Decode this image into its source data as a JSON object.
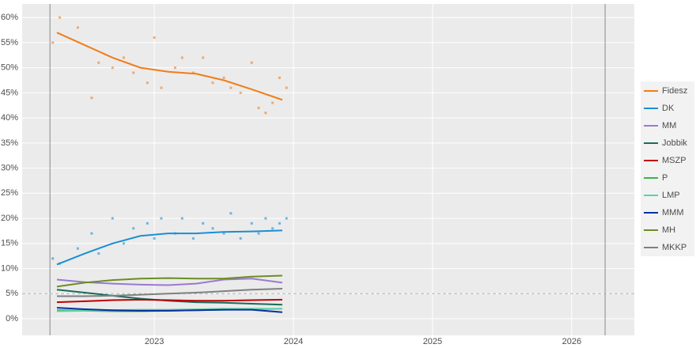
{
  "chart_data": {
    "type": "line",
    "xlim": [
      2022.05,
      2026.45
    ],
    "ylim": [
      -3.3,
      62.7
    ],
    "xticks": [
      2023,
      2024,
      2025,
      2026
    ],
    "yticks": [
      {
        "value": 0,
        "label": "0%"
      },
      {
        "value": 5,
        "label": "5%"
      },
      {
        "value": 10,
        "label": "10%"
      },
      {
        "value": 15,
        "label": "15%"
      },
      {
        "value": 20,
        "label": "20%"
      },
      {
        "value": 25,
        "label": "25%"
      },
      {
        "value": 30,
        "label": "30%"
      },
      {
        "value": 35,
        "label": "35%"
      },
      {
        "value": 40,
        "label": "40%"
      },
      {
        "value": 45,
        "label": "45%"
      },
      {
        "value": 50,
        "label": "50%"
      },
      {
        "value": 55,
        "label": "55%"
      },
      {
        "value": 60,
        "label": "60%"
      }
    ],
    "grid": true,
    "legend": "right",
    "threshold": 5,
    "election_lines": [
      2022.25,
      2026.24
    ],
    "series": [
      {
        "name": "Fidesz",
        "color": "#f07d1a",
        "x": [
          2022.3,
          2022.5,
          2022.7,
          2022.9,
          2023.1,
          2023.3,
          2023.5,
          2023.7,
          2023.92
        ],
        "values": [
          57,
          54.5,
          52,
          50,
          49.2,
          48.8,
          47.5,
          45.7,
          43.6
        ],
        "poll_x": [
          2022.27,
          2022.32,
          2022.45,
          2022.55,
          2022.6,
          2022.7,
          2022.78,
          2022.85,
          2022.95,
          2023.0,
          2023.05,
          2023.15,
          2023.2,
          2023.28,
          2023.35,
          2023.42,
          2023.5,
          2023.55,
          2023.62,
          2023.7,
          2023.75,
          2023.8,
          2023.85,
          2023.9,
          2023.95
        ],
        "poll_values": [
          55,
          60,
          58,
          44,
          51,
          50,
          52,
          49,
          47,
          56,
          46,
          50,
          52,
          49,
          52,
          47,
          48,
          46,
          45,
          51,
          42,
          41,
          43,
          48,
          46
        ]
      },
      {
        "name": "DK",
        "color": "#1a8fd4",
        "x": [
          2022.3,
          2022.5,
          2022.7,
          2022.9,
          2023.1,
          2023.3,
          2023.5,
          2023.7,
          2023.92
        ],
        "values": [
          10.8,
          13,
          15,
          16.5,
          17,
          17,
          17.3,
          17.4,
          17.6
        ],
        "poll_x": [
          2022.27,
          2022.32,
          2022.45,
          2022.55,
          2022.6,
          2022.7,
          2022.78,
          2022.85,
          2022.95,
          2023.0,
          2023.05,
          2023.15,
          2023.2,
          2023.28,
          2023.35,
          2023.42,
          2023.5,
          2023.55,
          2023.62,
          2023.7,
          2023.75,
          2023.8,
          2023.85,
          2023.9,
          2023.95
        ],
        "poll_values": [
          12,
          11,
          14,
          17,
          13,
          20,
          15,
          18,
          19,
          16,
          20,
          17,
          20,
          16,
          19,
          18,
          17,
          21,
          16,
          19,
          17,
          20,
          18,
          19,
          20
        ]
      },
      {
        "name": "MM",
        "color": "#9a7ad0",
        "x": [
          2022.3,
          2022.5,
          2022.7,
          2022.9,
          2023.1,
          2023.3,
          2023.5,
          2023.7,
          2023.92
        ],
        "values": [
          7.8,
          7.3,
          7,
          6.8,
          6.7,
          7,
          7.8,
          8,
          7.2
        ]
      },
      {
        "name": "Jobbik",
        "color": "#1a6b5a",
        "x": [
          2022.3,
          2022.5,
          2022.7,
          2022.9,
          2023.1,
          2023.3,
          2023.5,
          2023.7,
          2023.92
        ],
        "values": [
          5.8,
          5.2,
          4.6,
          4,
          3.6,
          3.3,
          3.2,
          3,
          2.8
        ]
      },
      {
        "name": "MSZP",
        "color": "#c00000",
        "x": [
          2022.3,
          2022.5,
          2022.7,
          2022.9,
          2023.1,
          2023.3,
          2023.5,
          2023.7,
          2023.92
        ],
        "values": [
          3.3,
          3.5,
          3.7,
          3.8,
          3.7,
          3.6,
          3.6,
          3.7,
          3.8
        ]
      },
      {
        "name": "P",
        "color": "#3cb34a",
        "x": [
          2022.3,
          2022.5,
          2022.7,
          2022.9,
          2023.1,
          2023.3,
          2023.5,
          2023.7,
          2023.92
        ],
        "values": [
          1.7,
          1.6,
          1.5,
          1.5,
          1.6,
          1.7,
          1.8,
          1.9,
          2
        ]
      },
      {
        "name": "LMP",
        "color": "#5fd0a8",
        "x": [
          2022.3,
          2022.5,
          2022.7,
          2022.9,
          2023.1,
          2023.3,
          2023.5,
          2023.7,
          2023.92
        ],
        "values": [
          1.5,
          1.6,
          1.7,
          1.8,
          1.8,
          1.9,
          2,
          2,
          2
        ]
      },
      {
        "name": "MMM",
        "color": "#0a2fa0",
        "x": [
          2022.3,
          2022.5,
          2022.7,
          2022.9,
          2023.1,
          2023.3,
          2023.5,
          2023.7,
          2023.92
        ],
        "values": [
          2.2,
          1.9,
          1.7,
          1.6,
          1.6,
          1.7,
          1.8,
          1.8,
          1.3
        ]
      },
      {
        "name": "MH",
        "color": "#6b8e23",
        "x": [
          2022.3,
          2022.5,
          2022.7,
          2022.9,
          2023.1,
          2023.3,
          2023.5,
          2023.7,
          2023.92
        ],
        "values": [
          6.4,
          7.2,
          7.7,
          8,
          8.1,
          8,
          8,
          8.4,
          8.6
        ]
      },
      {
        "name": "MKKP",
        "color": "#808080",
        "x": [
          2022.3,
          2022.5,
          2022.7,
          2022.9,
          2023.1,
          2023.3,
          2023.5,
          2023.7,
          2023.92
        ],
        "values": [
          4.5,
          4.5,
          4.6,
          4.8,
          5,
          5.2,
          5.5,
          5.8,
          6
        ]
      }
    ]
  }
}
